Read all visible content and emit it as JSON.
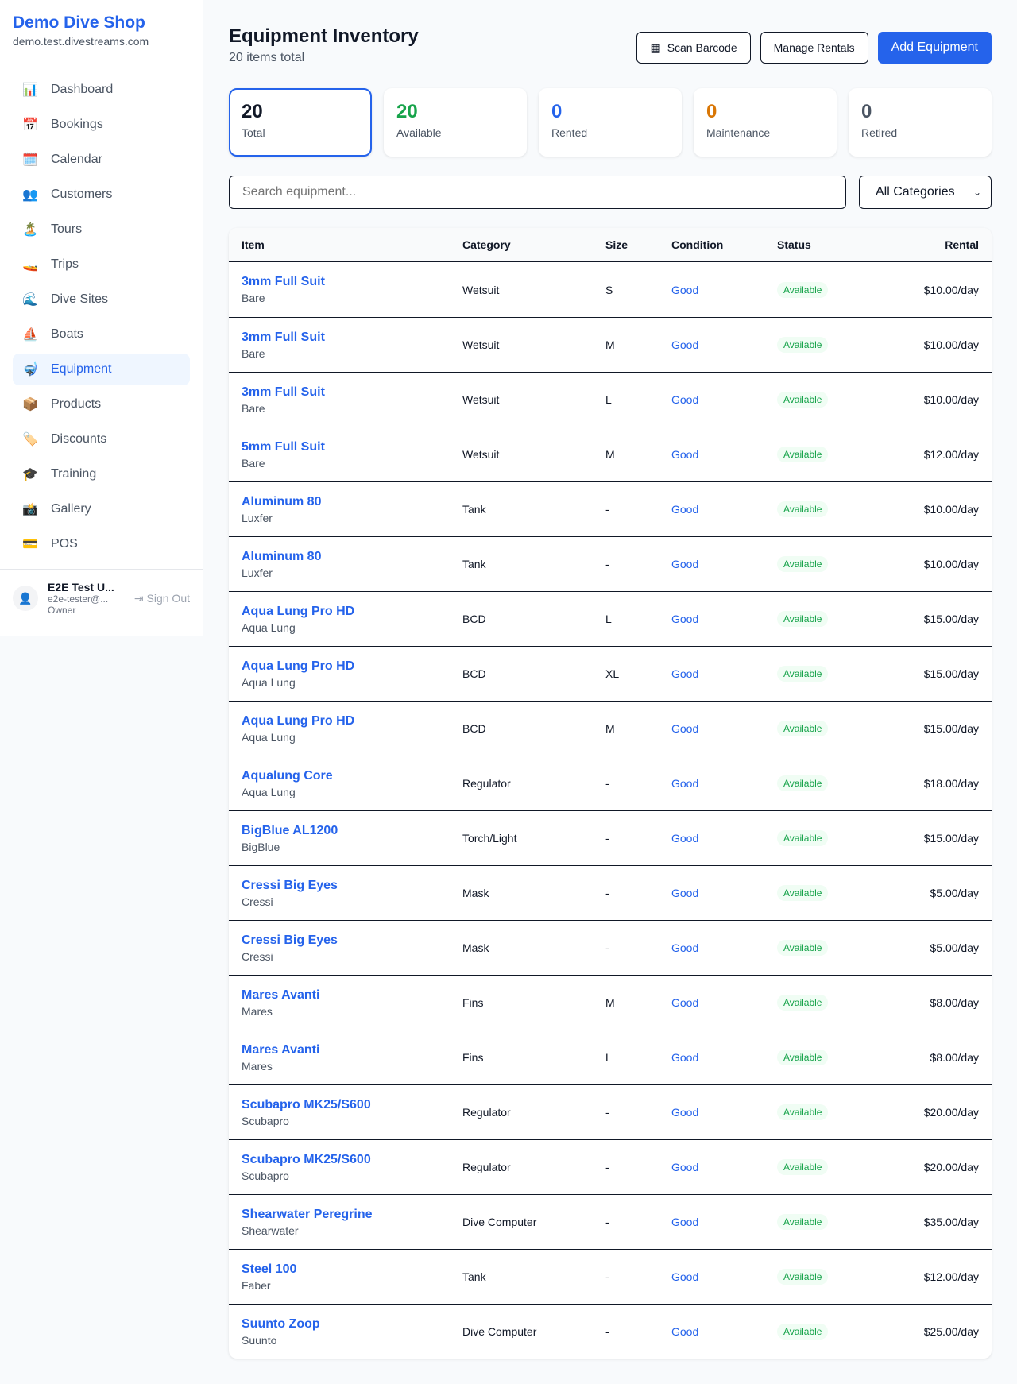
{
  "sidebar": {
    "brand": "Demo Dive Shop",
    "domain": "demo.test.divestreams.com",
    "items": [
      {
        "label": "Dashboard",
        "icon": "📊"
      },
      {
        "label": "Bookings",
        "icon": "📅"
      },
      {
        "label": "Calendar",
        "icon": "🗓️"
      },
      {
        "label": "Customers",
        "icon": "👥"
      },
      {
        "label": "Tours",
        "icon": "🏝️"
      },
      {
        "label": "Trips",
        "icon": "🚤"
      },
      {
        "label": "Dive Sites",
        "icon": "🌊"
      },
      {
        "label": "Boats",
        "icon": "⛵"
      },
      {
        "label": "Equipment",
        "icon": "🤿",
        "active": true
      },
      {
        "label": "Products",
        "icon": "📦"
      },
      {
        "label": "Discounts",
        "icon": "🏷️"
      },
      {
        "label": "Training",
        "icon": "🎓"
      },
      {
        "label": "Gallery",
        "icon": "📸"
      },
      {
        "label": "POS",
        "icon": "💳"
      }
    ],
    "user": {
      "name": "E2E Test U...",
      "email": "e2e-tester@...",
      "role": "Owner",
      "sign_out": "Sign Out"
    }
  },
  "header": {
    "title": "Equipment Inventory",
    "subtitle": "20 items total",
    "scan": "Scan Barcode",
    "manage": "Manage Rentals",
    "add": "Add Equipment"
  },
  "stats": [
    {
      "value": "20",
      "label": "Total",
      "color": "#111827"
    },
    {
      "value": "20",
      "label": "Available",
      "color": "#16a34a"
    },
    {
      "value": "0",
      "label": "Rented",
      "color": "#2563eb"
    },
    {
      "value": "0",
      "label": "Maintenance",
      "color": "#d97706"
    },
    {
      "value": "0",
      "label": "Retired",
      "color": "#4b5563"
    }
  ],
  "filters": {
    "search_placeholder": "Search equipment...",
    "category": "All Categories"
  },
  "table": {
    "columns": [
      "Item",
      "Category",
      "Size",
      "Condition",
      "Status",
      "Rental"
    ],
    "rows": [
      [
        "3mm Full Suit",
        "Bare",
        "Wetsuit",
        "S",
        "Good",
        "Available",
        "$10.00/day"
      ],
      [
        "3mm Full Suit",
        "Bare",
        "Wetsuit",
        "M",
        "Good",
        "Available",
        "$10.00/day"
      ],
      [
        "3mm Full Suit",
        "Bare",
        "Wetsuit",
        "L",
        "Good",
        "Available",
        "$10.00/day"
      ],
      [
        "5mm Full Suit",
        "Bare",
        "Wetsuit",
        "M",
        "Good",
        "Available",
        "$12.00/day"
      ],
      [
        "Aluminum 80",
        "Luxfer",
        "Tank",
        "-",
        "Good",
        "Available",
        "$10.00/day"
      ],
      [
        "Aluminum 80",
        "Luxfer",
        "Tank",
        "-",
        "Good",
        "Available",
        "$10.00/day"
      ],
      [
        "Aqua Lung Pro HD",
        "Aqua Lung",
        "BCD",
        "L",
        "Good",
        "Available",
        "$15.00/day"
      ],
      [
        "Aqua Lung Pro HD",
        "Aqua Lung",
        "BCD",
        "XL",
        "Good",
        "Available",
        "$15.00/day"
      ],
      [
        "Aqua Lung Pro HD",
        "Aqua Lung",
        "BCD",
        "M",
        "Good",
        "Available",
        "$15.00/day"
      ],
      [
        "Aqualung Core",
        "Aqua Lung",
        "Regulator",
        "-",
        "Good",
        "Available",
        "$18.00/day"
      ],
      [
        "BigBlue AL1200",
        "BigBlue",
        "Torch/Light",
        "-",
        "Good",
        "Available",
        "$15.00/day"
      ],
      [
        "Cressi Big Eyes",
        "Cressi",
        "Mask",
        "-",
        "Good",
        "Available",
        "$5.00/day"
      ],
      [
        "Cressi Big Eyes",
        "Cressi",
        "Mask",
        "-",
        "Good",
        "Available",
        "$5.00/day"
      ],
      [
        "Mares Avanti",
        "Mares",
        "Fins",
        "M",
        "Good",
        "Available",
        "$8.00/day"
      ],
      [
        "Mares Avanti",
        "Mares",
        "Fins",
        "L",
        "Good",
        "Available",
        "$8.00/day"
      ],
      [
        "Scubapro MK25/S600",
        "Scubapro",
        "Regulator",
        "-",
        "Good",
        "Available",
        "$20.00/day"
      ],
      [
        "Scubapro MK25/S600",
        "Scubapro",
        "Regulator",
        "-",
        "Good",
        "Available",
        "$20.00/day"
      ],
      [
        "Shearwater Peregrine",
        "Shearwater",
        "Dive Computer",
        "-",
        "Good",
        "Available",
        "$35.00/day"
      ],
      [
        "Steel 100",
        "Faber",
        "Tank",
        "-",
        "Good",
        "Available",
        "$12.00/day"
      ],
      [
        "Suunto Zoop",
        "Suunto",
        "Dive Computer",
        "-",
        "Good",
        "Available",
        "$25.00/day"
      ]
    ]
  }
}
